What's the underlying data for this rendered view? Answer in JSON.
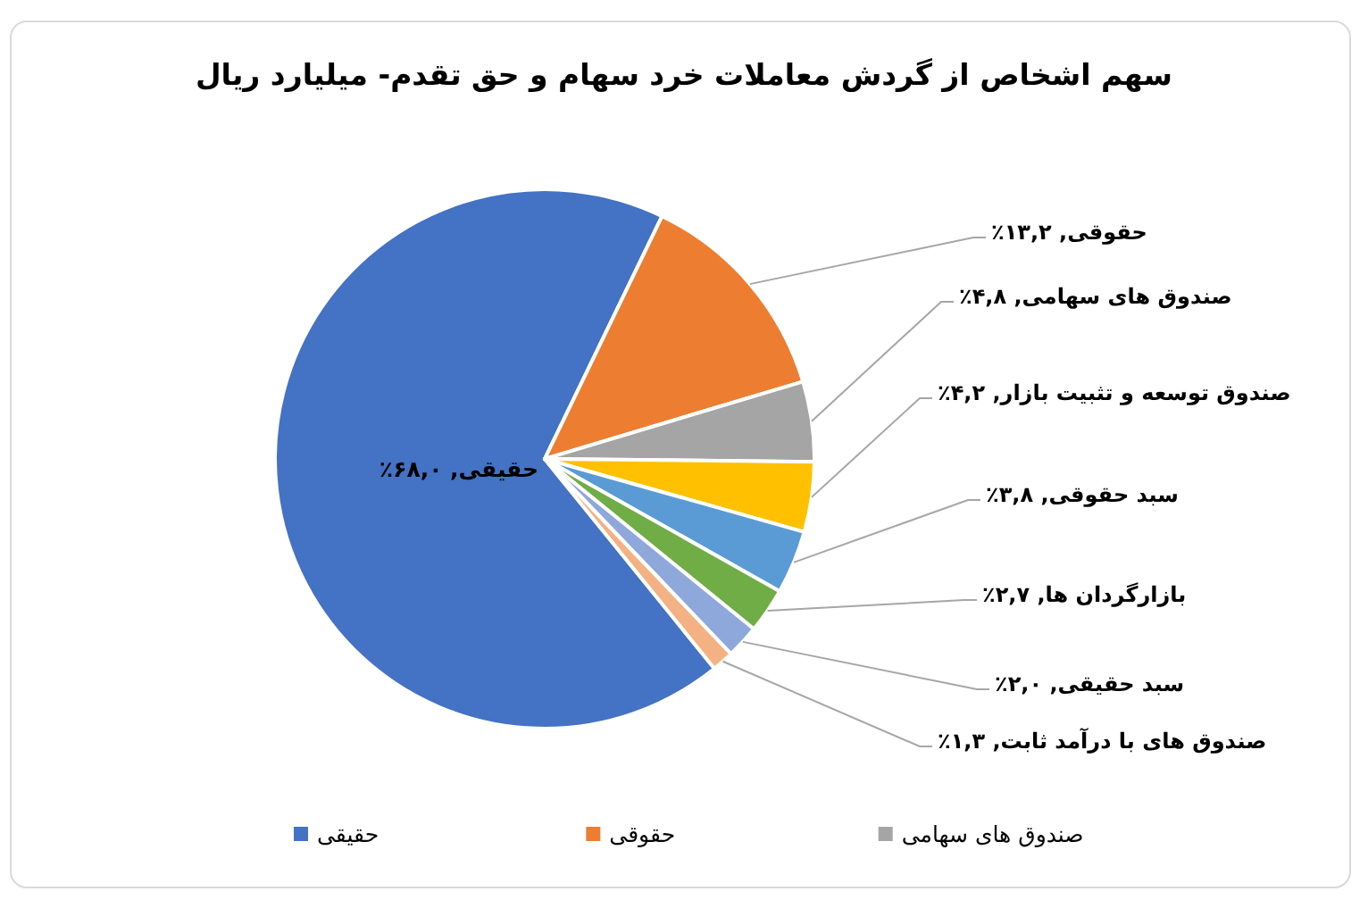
{
  "chart_data": {
    "type": "pie",
    "title": "سهم اشخاص از گردش معاملات خرد سهام و حق تقدم- میلیارد ریال",
    "categories": [
      "حقیقی",
      "حقوقی",
      "صندوق های سهامی",
      "صندوق توسعه و تثبیت بازار",
      "سبد حقوقی",
      "بازارگردان ها",
      "سبد حقیقی",
      "صندوق های با درآمد ثابت"
    ],
    "values": [
      68.0,
      13.2,
      4.8,
      4.2,
      3.8,
      2.7,
      2.0,
      1.3
    ],
    "colors": [
      "#4472c4",
      "#ed7d31",
      "#a5a5a5",
      "#ffc000",
      "#5b9bd5",
      "#70ad47",
      "#8fa8dc",
      "#f4b183"
    ],
    "value_labels": [
      ", ۶۸,۰٪",
      ", ۱۳,۲٪",
      ", ۴,۸٪",
      ", ۴,۲٪",
      ", ۳,۸٪",
      ", ۲,۷٪",
      ", ۲,۰٪",
      ", ۱,۳٪"
    ],
    "legend": "bottom"
  }
}
